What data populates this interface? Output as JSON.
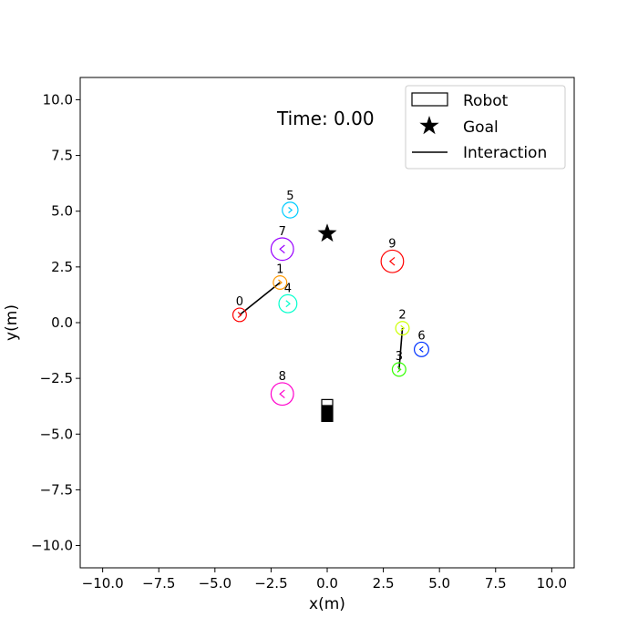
{
  "chart_data": {
    "type": "scatter",
    "xlabel": "x(m)",
    "ylabel": "y(m)",
    "xlim": [
      -11,
      11
    ],
    "ylim": [
      -11,
      11
    ],
    "xticks": [
      "−10.0",
      "−7.5",
      "−5.0",
      "−2.5",
      "0.0",
      "2.5",
      "5.0",
      "7.5",
      "10.0"
    ],
    "xtick_values": [
      -10,
      -7.5,
      -5,
      -2.5,
      0,
      2.5,
      5,
      7.5,
      10
    ],
    "yticks": [
      "10.0",
      "7.5",
      "5.0",
      "2.5",
      "0.0",
      "−2.5",
      "−5.0",
      "−7.5",
      "−10.0"
    ],
    "ytick_values": [
      10,
      7.5,
      5,
      2.5,
      0,
      -2.5,
      -5,
      -7.5,
      -10
    ],
    "grid": false,
    "time_text": "Time: 0.00",
    "legend": {
      "placement": "top-right",
      "entries": [
        {
          "label": "Robot",
          "marker": "rectangle"
        },
        {
          "label": "Goal",
          "marker": "star"
        },
        {
          "label": "Interaction",
          "marker": "line"
        }
      ]
    },
    "goal": {
      "x": 0.0,
      "y": 4.0
    },
    "robot": {
      "x": 0.0,
      "y": -3.9
    },
    "humans": [
      {
        "id": "0",
        "x": -3.9,
        "y": 0.35,
        "r": 0.3,
        "color": "#ff0000",
        "heading": "right"
      },
      {
        "id": "1",
        "x": -2.1,
        "y": 1.8,
        "r": 0.3,
        "color": "#ff9900",
        "heading": "right"
      },
      {
        "id": "2",
        "x": 3.35,
        "y": -0.25,
        "r": 0.3,
        "color": "#ccff00",
        "heading": "right"
      },
      {
        "id": "3",
        "x": 3.2,
        "y": -2.1,
        "r": 0.3,
        "color": "#33ff00",
        "heading": "right"
      },
      {
        "id": "4",
        "x": -1.75,
        "y": 0.85,
        "r": 0.4,
        "color": "#00ffcc",
        "heading": "right"
      },
      {
        "id": "5",
        "x": -1.65,
        "y": 5.05,
        "r": 0.35,
        "color": "#00ccff",
        "heading": "right"
      },
      {
        "id": "6",
        "x": 4.2,
        "y": -1.2,
        "r": 0.32,
        "color": "#0033ff",
        "heading": "left"
      },
      {
        "id": "7",
        "x": -2.0,
        "y": 3.3,
        "r": 0.5,
        "color": "#9900ff",
        "heading": "left"
      },
      {
        "id": "8",
        "x": -2.0,
        "y": -3.2,
        "r": 0.5,
        "color": "#ff00cc",
        "heading": "left"
      },
      {
        "id": "9",
        "x": 2.9,
        "y": 2.75,
        "r": 0.5,
        "color": "#ff0000",
        "heading": "left"
      }
    ],
    "interactions": [
      {
        "from": "0",
        "to": "1"
      },
      {
        "from": "2",
        "to": "3"
      }
    ]
  }
}
